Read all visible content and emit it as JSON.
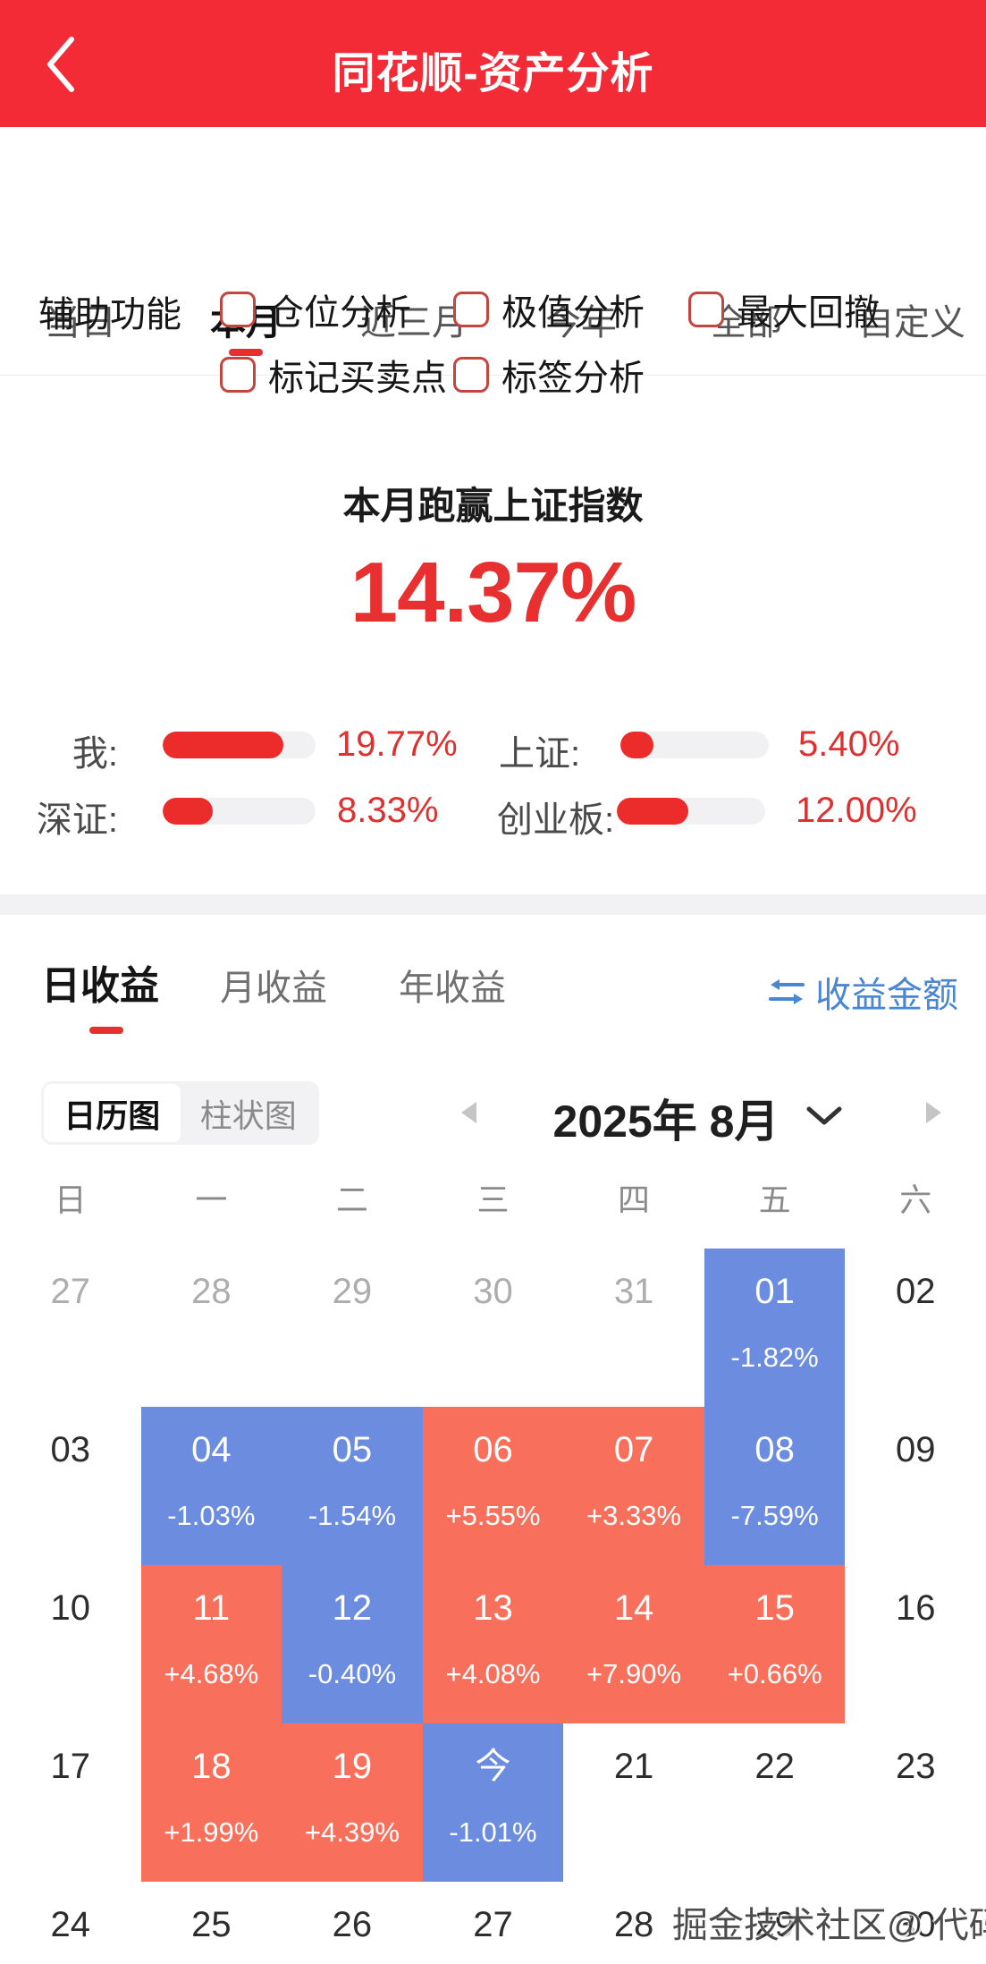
{
  "header": {
    "title": "同花顺-资产分析"
  },
  "period_tabs": {
    "items": [
      "当日",
      "本月",
      "近三月",
      "今年",
      "全部",
      "自定义"
    ],
    "active": "本月"
  },
  "aux": {
    "label": "辅助功能",
    "items": [
      "仓位分析",
      "极值分析",
      "最大回撤",
      "标记买卖点",
      "标签分析"
    ],
    "checked": [
      false,
      false,
      false,
      false,
      false
    ]
  },
  "summary": {
    "title": "本月跑赢上证指数",
    "value": "14.37%"
  },
  "benchmarks": [
    {
      "label": "我:",
      "value": "19.77%",
      "fill": 79
    },
    {
      "label": "上证:",
      "value": "5.40%",
      "fill": 22
    },
    {
      "label": "深证:",
      "value": "8.33%",
      "fill": 33
    },
    {
      "label": "创业板:",
      "value": "12.00%",
      "fill": 48
    }
  ],
  "income_tabs": {
    "items": [
      "日收益",
      "月收益",
      "年收益"
    ],
    "active": "日收益",
    "amount_link": "收益金额"
  },
  "chart_toggle": {
    "options": [
      "日历图",
      "柱状图"
    ],
    "active": "日历图"
  },
  "month_nav": {
    "label": "2025年 8月"
  },
  "calendar": {
    "weekdays": [
      "日",
      "一",
      "二",
      "三",
      "四",
      "五",
      "六"
    ],
    "weeks": [
      [
        {
          "day": "27",
          "type": "prev"
        },
        {
          "day": "28",
          "type": "prev"
        },
        {
          "day": "29",
          "type": "prev"
        },
        {
          "day": "30",
          "type": "prev"
        },
        {
          "day": "31",
          "type": "prev"
        },
        {
          "day": "01",
          "type": "down",
          "value": "-1.82%"
        },
        {
          "day": "02",
          "type": "none"
        }
      ],
      [
        {
          "day": "03",
          "type": "none"
        },
        {
          "day": "04",
          "type": "down",
          "value": "-1.03%"
        },
        {
          "day": "05",
          "type": "down",
          "value": "-1.54%"
        },
        {
          "day": "06",
          "type": "up",
          "value": "+5.55%"
        },
        {
          "day": "07",
          "type": "up",
          "value": "+3.33%"
        },
        {
          "day": "08",
          "type": "down",
          "value": "-7.59%"
        },
        {
          "day": "09",
          "type": "none"
        }
      ],
      [
        {
          "day": "10",
          "type": "none"
        },
        {
          "day": "11",
          "type": "up",
          "value": "+4.68%"
        },
        {
          "day": "12",
          "type": "down",
          "value": "-0.40%"
        },
        {
          "day": "13",
          "type": "up",
          "value": "+4.08%"
        },
        {
          "day": "14",
          "type": "up",
          "value": "+7.90%"
        },
        {
          "day": "15",
          "type": "up",
          "value": "+0.66%"
        },
        {
          "day": "16",
          "type": "none"
        }
      ],
      [
        {
          "day": "17",
          "type": "none"
        },
        {
          "day": "18",
          "type": "up",
          "value": "+1.99%"
        },
        {
          "day": "19",
          "type": "up",
          "value": "+4.39%"
        },
        {
          "day": "今",
          "type": "down",
          "value": "-1.01%"
        },
        {
          "day": "21",
          "type": "none"
        },
        {
          "day": "22",
          "type": "none"
        },
        {
          "day": "23",
          "type": "none"
        }
      ],
      [
        {
          "day": "24",
          "type": "none"
        },
        {
          "day": "25",
          "type": "none"
        },
        {
          "day": "26",
          "type": "none"
        },
        {
          "day": "27",
          "type": "none"
        },
        {
          "day": "28",
          "type": "none"
        },
        {
          "day": "29",
          "type": "none"
        },
        {
          "day": "30",
          "type": "none"
        }
      ]
    ]
  },
  "watermark": "掘金技术社区@ 代码生发液",
  "icons": {
    "back": "chevron-left",
    "swap": "swap-arrows",
    "month_prev": "triangle-left",
    "month_next": "triangle-right",
    "month_dropdown": "chevron-down"
  },
  "colors": {
    "header_red": "#F22B36",
    "accent_red": "#E83030",
    "bar_fill_red": "#EC2B2B",
    "calendar_up_red": "#F8705C",
    "calendar_down_blue": "#6C8CE0",
    "link_blue": "#4A86D2"
  }
}
